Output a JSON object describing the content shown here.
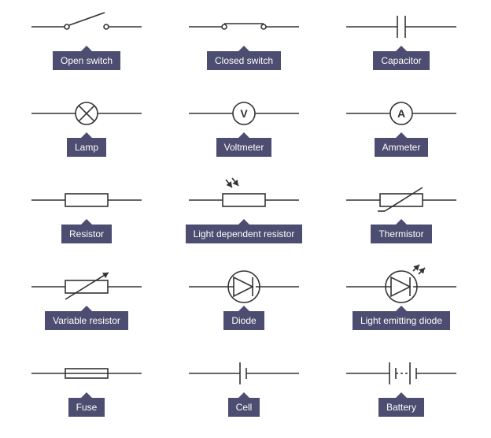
{
  "style": {
    "label_bg": "#4d4d71",
    "label_text_color": "#ffffff",
    "label_fontsize": 12,
    "stroke": "#333333",
    "stroke_width": 1.6,
    "text_stroke": "#333333"
  },
  "items": [
    {
      "id": "open-switch",
      "label": "Open switch"
    },
    {
      "id": "closed-switch",
      "label": "Closed switch"
    },
    {
      "id": "capacitor",
      "label": "Capacitor"
    },
    {
      "id": "lamp",
      "label": "Lamp",
      "radius": 14
    },
    {
      "id": "voltmeter",
      "label": "Voltmeter",
      "letter": "V",
      "radius": 14
    },
    {
      "id": "ammeter",
      "label": "Ammeter",
      "letter": "A",
      "radius": 14
    },
    {
      "id": "resistor",
      "label": "Resistor"
    },
    {
      "id": "ldr",
      "label": "Light dependent resistor"
    },
    {
      "id": "thermistor",
      "label": "Thermistor"
    },
    {
      "id": "var-resistor",
      "label": "Variable resistor"
    },
    {
      "id": "diode",
      "label": "Diode"
    },
    {
      "id": "led",
      "label": "Light emitting diode"
    },
    {
      "id": "fuse",
      "label": "Fuse"
    },
    {
      "id": "cell",
      "label": "Cell"
    },
    {
      "id": "battery",
      "label": "Battery"
    }
  ]
}
